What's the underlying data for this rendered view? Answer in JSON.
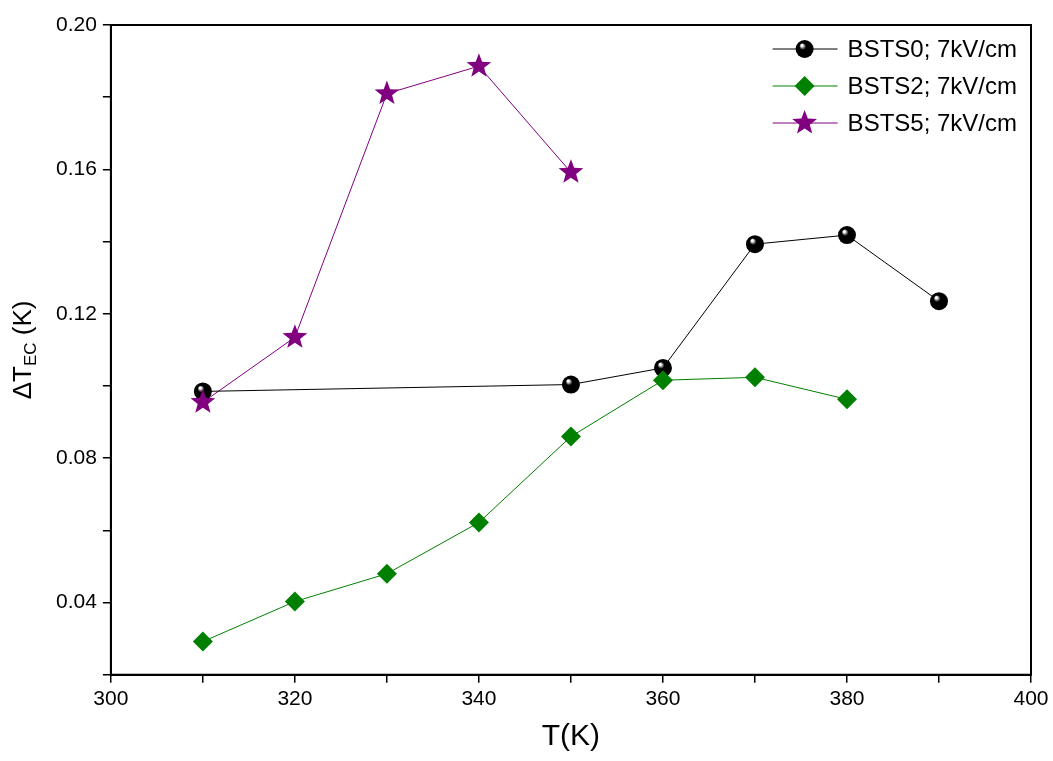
{
  "chart_data": {
    "type": "line",
    "xlabel": "T(K)",
    "ylabel": "ΔT$_{EC}$ (K)",
    "xlim": [
      300,
      400
    ],
    "xticks": [
      300,
      {
        "value": 310,
        "label": null
      },
      320,
      {
        "value": 330,
        "label": null
      },
      340,
      {
        "value": 350,
        "label": null
      },
      360,
      {
        "value": 370,
        "label": null
      },
      380,
      {
        "value": 390,
        "label": null
      },
      400
    ],
    "ylim": [
      0.02,
      0.2
    ],
    "yticks": [
      {
        "value": 0.02,
        "label": null
      },
      0.04,
      {
        "value": 0.06,
        "label": null
      },
      0.08,
      {
        "value": 0.1,
        "label": null
      },
      0.12,
      {
        "value": 0.14,
        "label": null
      },
      0.16,
      {
        "value": 0.18,
        "label": null
      },
      {
        "value": 0.2,
        "label": "0.20"
      }
    ],
    "grid": false,
    "legend": "top right",
    "line_style": "solid",
    "series": [
      {
        "name": "BSTS0; 7kV/cm",
        "color": "#000000",
        "marker": "circle",
        "x": [
          310,
          350,
          360,
          370,
          380,
          390
        ],
        "values": [
          0.0985,
          0.1004,
          0.105,
          0.1393,
          0.1418,
          0.1235
        ]
      },
      {
        "name": "BSTS2; 7kV/cm",
        "color": "#008000",
        "marker": "diamond",
        "x": [
          310,
          320,
          330,
          340,
          350,
          360,
          370,
          380
        ],
        "values": [
          0.0292,
          0.0403,
          0.048,
          0.0622,
          0.086,
          0.1016,
          0.1024,
          0.0963
        ]
      },
      {
        "name": "BSTS5; 7kV/cm",
        "color": "#800080",
        "marker": "star",
        "x": [
          310,
          320,
          330,
          340,
          350
        ],
        "values": [
          0.0955,
          0.1135,
          0.181,
          0.1886,
          0.1592
        ]
      }
    ]
  }
}
